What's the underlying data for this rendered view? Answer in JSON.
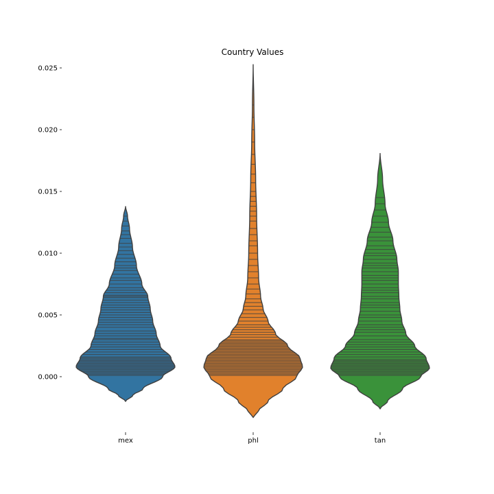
{
  "chart_data": {
    "type": "violin",
    "title": "Country Values",
    "xlabel": "",
    "ylabel": "",
    "categories": [
      "mex",
      "phl",
      "tan"
    ],
    "ylim": [
      -0.0045,
      0.0255
    ],
    "yticks": [
      0.0,
      0.005,
      0.01,
      0.015,
      0.02,
      0.025
    ],
    "ytick_labels": [
      "0.000",
      "0.005",
      "0.010",
      "0.015",
      "0.020",
      "0.025"
    ],
    "grid": false,
    "inner": "stick",
    "series": [
      {
        "category": "mex",
        "color": "#3274a1",
        "min": -0.002,
        "max": 0.0138,
        "profile": [
          [
            -0.002,
            0.0
          ],
          [
            -0.0015,
            0.15
          ],
          [
            -0.001,
            0.35
          ],
          [
            0.0,
            0.75
          ],
          [
            0.0008,
            1.0
          ],
          [
            0.0015,
            0.92
          ],
          [
            0.0025,
            0.7
          ],
          [
            0.0035,
            0.62
          ],
          [
            0.0045,
            0.55
          ],
          [
            0.0055,
            0.5
          ],
          [
            0.0065,
            0.45
          ],
          [
            0.0075,
            0.33
          ],
          [
            0.009,
            0.22
          ],
          [
            0.0105,
            0.14
          ],
          [
            0.012,
            0.08
          ],
          [
            0.013,
            0.04
          ],
          [
            0.0138,
            0.0
          ]
        ],
        "observations": [
          0.0001,
          0.0002,
          0.0003,
          0.0004,
          0.0005,
          0.0006,
          0.0007,
          0.0008,
          0.0009,
          0.001,
          0.0011,
          0.0012,
          0.0013,
          0.0014,
          0.0015,
          0.0016,
          0.0018,
          0.002,
          0.0022,
          0.0024,
          0.0026,
          0.0028,
          0.003,
          0.0031,
          0.0033,
          0.0035,
          0.0037,
          0.004,
          0.0042,
          0.0044,
          0.0046,
          0.0048,
          0.005,
          0.0052,
          0.0054,
          0.0056,
          0.0058,
          0.006,
          0.0062,
          0.0064,
          0.0065,
          0.0066,
          0.0068,
          0.007,
          0.0072,
          0.0075,
          0.0078,
          0.008,
          0.0083,
          0.0086,
          0.0088,
          0.009,
          0.0093,
          0.0096,
          0.0099,
          0.0102,
          0.0105,
          0.0108,
          0.0112,
          0.0115,
          0.0118,
          0.0122,
          0.0126,
          0.013
        ]
      },
      {
        "category": "phl",
        "color": "#e1812c",
        "min": -0.0033,
        "max": 0.0253,
        "profile": [
          [
            -0.0033,
            0.0
          ],
          [
            -0.0028,
            0.1
          ],
          [
            -0.002,
            0.3
          ],
          [
            -0.001,
            0.6
          ],
          [
            0.0,
            0.88
          ],
          [
            0.0008,
            1.0
          ],
          [
            0.0015,
            0.95
          ],
          [
            0.0025,
            0.7
          ],
          [
            0.0035,
            0.45
          ],
          [
            0.0045,
            0.3
          ],
          [
            0.0055,
            0.2
          ],
          [
            0.0065,
            0.15
          ],
          [
            0.008,
            0.11
          ],
          [
            0.01,
            0.09
          ],
          [
            0.013,
            0.07
          ],
          [
            0.016,
            0.05
          ],
          [
            0.019,
            0.03
          ],
          [
            0.022,
            0.015
          ],
          [
            0.0253,
            0.0
          ]
        ],
        "observations": [
          0.0001,
          0.0002,
          0.0003,
          0.0004,
          0.0005,
          0.0006,
          0.0007,
          0.0008,
          0.0009,
          0.001,
          0.0011,
          0.0012,
          0.0013,
          0.0014,
          0.0015,
          0.0016,
          0.0017,
          0.0018,
          0.0019,
          0.002,
          0.0021,
          0.0022,
          0.0023,
          0.0024,
          0.0025,
          0.0026,
          0.0027,
          0.0028,
          0.0029,
          0.003,
          0.0032,
          0.0034,
          0.0036,
          0.0038,
          0.004,
          0.0042,
          0.0045,
          0.0048,
          0.0051,
          0.0054,
          0.0057,
          0.006,
          0.0063,
          0.0067,
          0.0071,
          0.0075,
          0.008,
          0.0085,
          0.009,
          0.0095,
          0.01,
          0.0106,
          0.011,
          0.0115,
          0.012,
          0.0126,
          0.013,
          0.0134,
          0.0138,
          0.0142,
          0.0146,
          0.015,
          0.0157,
          0.0164,
          0.0172,
          0.018,
          0.019,
          0.02,
          0.021,
          0.022
        ]
      },
      {
        "category": "tan",
        "color": "#3a923a",
        "min": -0.0026,
        "max": 0.0181,
        "profile": [
          [
            -0.0026,
            0.0
          ],
          [
            -0.002,
            0.15
          ],
          [
            -0.001,
            0.45
          ],
          [
            0.0,
            0.82
          ],
          [
            0.0007,
            1.0
          ],
          [
            0.0015,
            0.93
          ],
          [
            0.0025,
            0.7
          ],
          [
            0.0035,
            0.52
          ],
          [
            0.0045,
            0.44
          ],
          [
            0.0055,
            0.4
          ],
          [
            0.0065,
            0.38
          ],
          [
            0.0075,
            0.37
          ],
          [
            0.0085,
            0.37
          ],
          [
            0.0095,
            0.34
          ],
          [
            0.011,
            0.26
          ],
          [
            0.0125,
            0.17
          ],
          [
            0.014,
            0.1
          ],
          [
            0.016,
            0.05
          ],
          [
            0.0181,
            0.0
          ]
        ],
        "observations": [
          0.0001,
          0.0002,
          0.0003,
          0.0004,
          0.0005,
          0.0006,
          0.0007,
          0.0008,
          0.0009,
          0.001,
          0.0011,
          0.0012,
          0.0013,
          0.0014,
          0.0016,
          0.0018,
          0.002,
          0.0022,
          0.0024,
          0.0026,
          0.0028,
          0.003,
          0.0033,
          0.0036,
          0.0038,
          0.004,
          0.0042,
          0.0045,
          0.0048,
          0.005,
          0.0053,
          0.0056,
          0.0058,
          0.006,
          0.0063,
          0.0065,
          0.0068,
          0.007,
          0.0072,
          0.0075,
          0.0078,
          0.008,
          0.0082,
          0.0085,
          0.0088,
          0.009,
          0.0092,
          0.0095,
          0.0098,
          0.01,
          0.0103,
          0.0106,
          0.011,
          0.0113,
          0.0117,
          0.0121,
          0.0125,
          0.013,
          0.0135,
          0.014,
          0.0145
        ]
      }
    ]
  },
  "colors": {
    "outline": "#3f3f3f",
    "stick": "#3f3f3f",
    "axis": "#000000"
  }
}
